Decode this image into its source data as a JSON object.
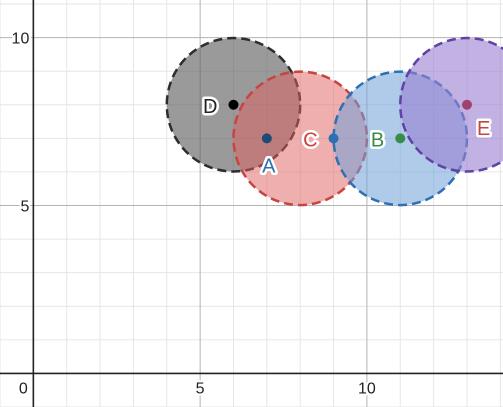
{
  "graph": {
    "x_range": [
      -1,
      14.08
    ],
    "y_range": [
      -1,
      11.12
    ],
    "minor_step": 1,
    "major_step": 5,
    "x_tick_labels": [
      {
        "value": 0,
        "label": "0"
      },
      {
        "value": 5,
        "label": "5"
      },
      {
        "value": 10,
        "label": "10"
      }
    ],
    "y_tick_labels": [
      {
        "value": 5,
        "label": "5"
      },
      {
        "value": 10,
        "label": "10"
      }
    ],
    "colors": {
      "minor_grid": "#e6e6e6",
      "major_grid": "#b3b3b3",
      "axis": "#222222",
      "tick_text": "#222222"
    }
  },
  "circles": [
    {
      "name": "circle-D",
      "cx": 6,
      "cy": 8,
      "r": 2,
      "fill": "#5c5c5c",
      "fill_opacity": 0.62,
      "stroke": "#2d2d2d"
    },
    {
      "name": "circle-A",
      "cx": 8,
      "cy": 7,
      "r": 2,
      "fill": "#e06060",
      "fill_opacity": 0.5,
      "stroke": "#c74440"
    },
    {
      "name": "circle-B",
      "cx": 11,
      "cy": 7,
      "r": 2,
      "fill": "#6f9fd8",
      "fill_opacity": 0.55,
      "stroke": "#2d70b3"
    },
    {
      "name": "circle-E",
      "cx": 13,
      "cy": 8,
      "r": 2,
      "fill": "#9a7fd1",
      "fill_opacity": 0.6,
      "stroke": "#6042a6"
    }
  ],
  "points": [
    {
      "name": "point-D",
      "label": "D",
      "x": 6,
      "y": 8,
      "color": "#000000",
      "label_color": "#222222",
      "label_pos": "left"
    },
    {
      "name": "point-A",
      "label": "A",
      "x": 7,
      "y": 7,
      "color": "#1e4a7a",
      "label_color": "#2d70b3",
      "label_pos": "below"
    },
    {
      "name": "point-C",
      "label": "C",
      "x": 9,
      "y": 7,
      "color": "#2d70b3",
      "label_color": "#c74440",
      "label_pos": "left"
    },
    {
      "name": "point-B",
      "label": "B",
      "x": 11,
      "y": 7,
      "color": "#388c46",
      "label_color": "#388c46",
      "label_pos": "left"
    },
    {
      "name": "point-E",
      "label": "E",
      "x": 13,
      "y": 8,
      "color": "#a04070",
      "label_color": "#c74440",
      "label_pos": "below-right"
    }
  ]
}
